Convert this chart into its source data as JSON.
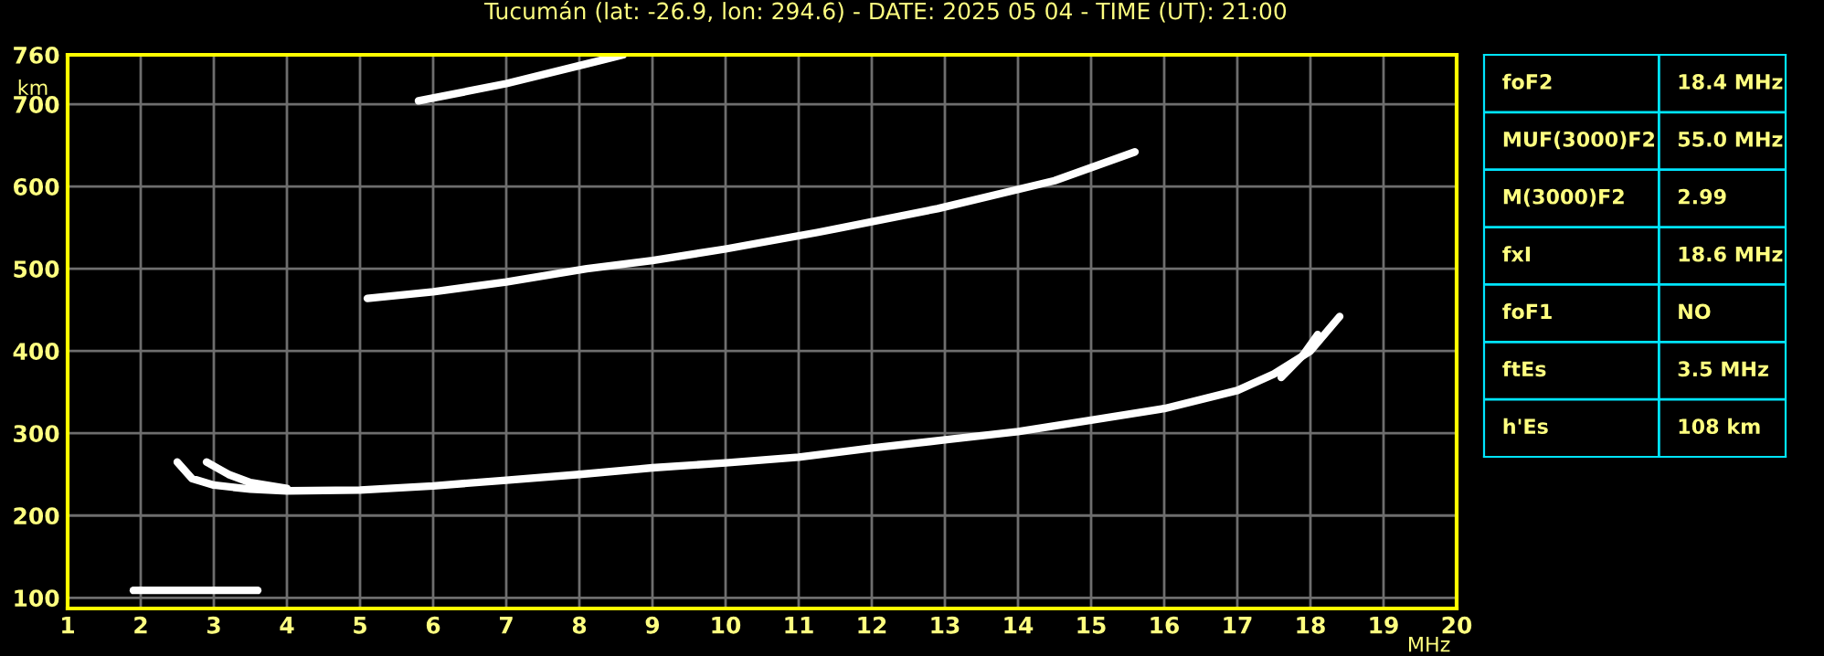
{
  "chart_data": [
    {
      "type": "line",
      "title": "Tucumán (lat: -26.9, lon: 294.6) - DATE: 2025 05 04 - TIME (UT): 21:00",
      "xlabel": "MHz",
      "ylabel": "km",
      "xlim": [
        1,
        20
      ],
      "ylim": [
        87,
        760
      ],
      "xticks": [
        1,
        2,
        3,
        4,
        5,
        6,
        7,
        8,
        9,
        10,
        11,
        12,
        13,
        14,
        15,
        16,
        17,
        18,
        19,
        20
      ],
      "yticks": [
        100,
        200,
        300,
        400,
        500,
        600,
        700,
        760
      ],
      "grid": true,
      "marker": "none",
      "line_style": "solid",
      "series": [
        {
          "color": "#ffffff",
          "x": [
            2.5,
            2.7,
            3.0,
            3.5,
            4,
            5,
            6,
            7,
            8,
            9,
            10,
            11,
            12,
            13,
            14,
            15,
            16,
            17,
            17.5,
            18,
            18.4
          ],
          "values": [
            265,
            245,
            237,
            232,
            230,
            231,
            236,
            243,
            250,
            258,
            264,
            271,
            282,
            292,
            302,
            316,
            330,
            352,
            372,
            400,
            442
          ]
        },
        {
          "color": "#ffffff",
          "x": [
            2.9,
            3.2,
            3.5,
            4
          ],
          "values": [
            265,
            250,
            240,
            233
          ]
        },
        {
          "color": "#ffffff",
          "x": [
            17.6,
            17.9,
            18.1
          ],
          "values": [
            368,
            395,
            420
          ]
        },
        {
          "color": "#ffffff",
          "x": [
            1.9,
            2.5,
            3.0,
            3.6
          ],
          "values": [
            109,
            109,
            109,
            109
          ]
        },
        {
          "color": "#ffffff",
          "x": [
            5.1,
            6,
            7,
            8.1,
            9,
            10,
            11.25,
            12.9,
            14.5,
            15.6
          ],
          "values": [
            464,
            472,
            484,
            500,
            510,
            524,
            544,
            573,
            607,
            642
          ]
        },
        {
          "color": "#ffffff",
          "x": [
            5.8,
            7,
            8.1,
            8.6
          ],
          "values": [
            704,
            725,
            749,
            760
          ]
        }
      ]
    },
    {
      "type": "other",
      "annotations": [
        "foF2",
        "18.4 MHz",
        "MUF(3000)F2",
        "55.0 MHz",
        "M(3000)F2",
        "2.99",
        "fxI",
        "18.6 MHz",
        "foF1",
        "NO",
        "ftEs",
        "3.5 MHz",
        "h'Es",
        "108 km"
      ]
    }
  ]
}
